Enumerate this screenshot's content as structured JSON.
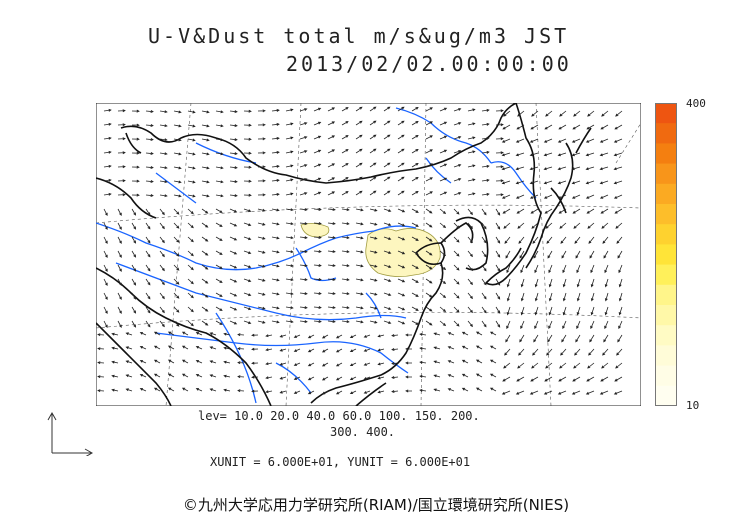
{
  "title": {
    "line1": "U-V&Dust total m/s&ug/m3 JST",
    "line2": "2013/02/02.00:00:00"
  },
  "colorbar": {
    "max_label": "400",
    "min_label": "10",
    "colors": [
      "#ee5511",
      "#f06a10",
      "#f47f10",
      "#f8951a",
      "#fbaa22",
      "#fdbe2a",
      "#fed22f",
      "#ffe438",
      "#fff05a",
      "#fff58a",
      "#fff8a8",
      "#fffbc4",
      "#fffcd8",
      "#fffde6",
      "#fffef0"
    ]
  },
  "legend": {
    "lev_line1": "lev= 10.0 20.0 40.0 60.0 100. 150. 200.",
    "lev_line2": "300. 400.",
    "units": "XUNIT = 6.000E+01, YUNIT = 6.000E+01"
  },
  "credit": "©九州大学応用力学研究所(RIAM)/国立環境研究所(NIES)",
  "colors": {
    "river": "#1a64ff",
    "dust_fill": "#fdf6bf",
    "coast": "#111111",
    "vector": "#222222"
  }
}
